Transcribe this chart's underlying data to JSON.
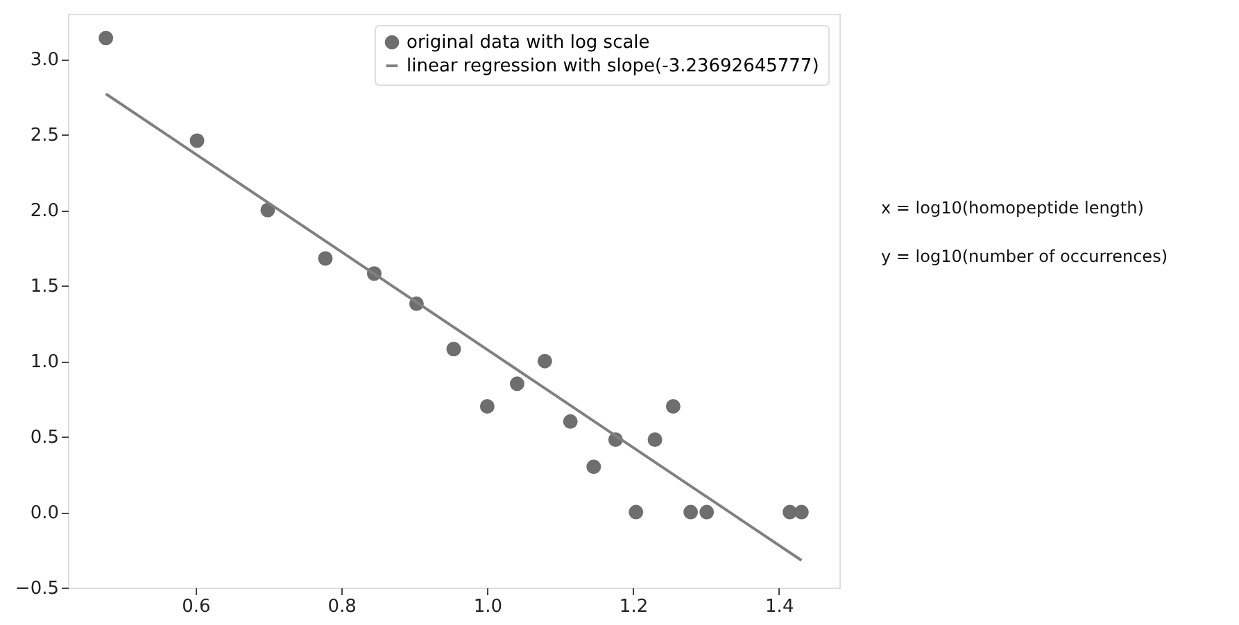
{
  "chart_data": {
    "type": "scatter",
    "series": [
      {
        "name": "original data with log scale",
        "type": "scatter",
        "color": "#6e6e6e",
        "marker": "circle",
        "x": [
          0.477,
          0.602,
          0.699,
          0.778,
          0.845,
          0.903,
          0.954,
          1.0,
          1.041,
          1.079,
          1.114,
          1.146,
          1.176,
          1.204,
          1.23,
          1.255,
          1.279,
          1.301,
          1.415,
          1.431
        ],
        "values": [
          3.14,
          2.46,
          2.0,
          1.68,
          1.58,
          1.38,
          1.08,
          0.7,
          0.85,
          1.0,
          0.6,
          0.3,
          0.48,
          0.0,
          0.48,
          0.7,
          0.0,
          0.0,
          0.0,
          0.0
        ]
      },
      {
        "name": "linear regression with slope(-3.23692645777)",
        "type": "line",
        "color": "#808080",
        "marker": "none",
        "line_style": "solid",
        "x": [
          0.477,
          1.431
        ],
        "values": [
          2.77,
          -0.32
        ]
      }
    ],
    "xlim": [
      0.425,
      1.483
    ],
    "ylim": [
      -0.5,
      3.3
    ],
    "xticks": [
      0.6,
      0.8,
      {
        "value": 1,
        "label": "1.0"
      },
      1.2,
      1.4
    ],
    "yticks": [
      -0.5,
      {
        "value": 0,
        "label": "0.0"
      },
      0.5,
      {
        "value": 1,
        "label": "1.0"
      },
      1.5,
      {
        "value": 2,
        "label": "2.0"
      },
      2.5,
      {
        "value": 3,
        "label": "3.0"
      }
    ],
    "grid": false,
    "legend": "top right",
    "annotations": [
      "x = log10(homopeptide length)",
      "y = log10(number of occurrences)"
    ]
  }
}
